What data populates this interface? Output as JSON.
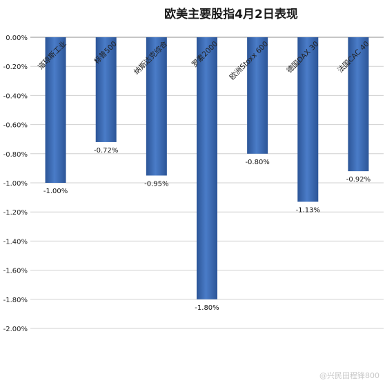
{
  "chart_data": {
    "type": "bar",
    "title": "欧美主要股指4月2日表现",
    "categories": [
      "道琼斯工业",
      "标普500",
      "纳斯达克综合",
      "罗素2000",
      "欧洲Stoxx 600",
      "德国DAX 30",
      "法国CAC 40"
    ],
    "values": [
      -1.0,
      -0.72,
      -0.95,
      -1.8,
      -0.8,
      -1.13,
      -0.92
    ],
    "data_labels": [
      "-1.00%",
      "-0.72%",
      "-0.95%",
      "-1.80%",
      "-0.80%",
      "-1.13%",
      "-0.92%"
    ],
    "y_ticks": [
      "0.00%",
      "-0.20%",
      "-0.40%",
      "-0.60%",
      "-0.80%",
      "-1.00%",
      "-1.20%",
      "-1.40%",
      "-1.60%",
      "-1.80%",
      "-2.00%"
    ],
    "ylim": [
      -2.0,
      0.0
    ],
    "grid": true,
    "bar_color": "#3f6fbd",
    "bar_color_dark": "#2c5597"
  },
  "watermark": "@兴民田程锋800"
}
